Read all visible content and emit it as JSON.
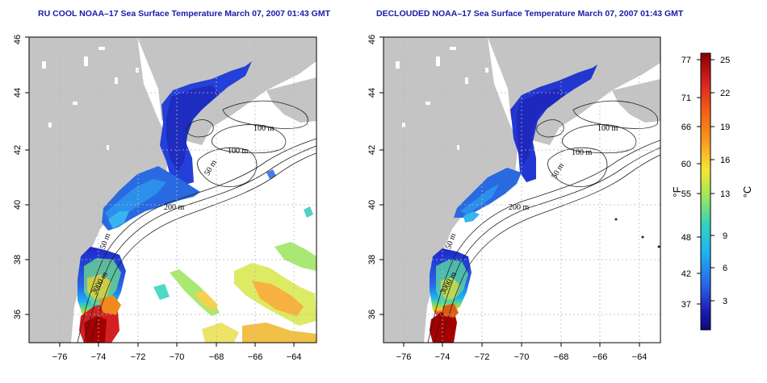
{
  "panels": [
    {
      "title": "RU COOL NOAA–17 Sea Surface Temperature March 07, 2007 01:43 GMT",
      "contour_labels": [
        "100 m",
        "100 m",
        "50 m",
        "200 m",
        "50 m",
        "3000 m"
      ]
    },
    {
      "title": "DECLOUDED NOAA–17 Sea Surface Temperature March 07, 2007 01:43 GMT",
      "contour_labels": [
        "100 m",
        "100 m",
        "50 m",
        "200 m",
        "50 m",
        "3000 m"
      ]
    }
  ],
  "axes": {
    "x_ticks": [
      "−76",
      "−74",
      "−72",
      "−70",
      "−68",
      "−66",
      "−64"
    ],
    "y_ticks": [
      "36",
      "38",
      "40",
      "42",
      "44",
      "46"
    ]
  },
  "colorbar": {
    "fahrenheit_ticks": [
      "77",
      "71",
      "66",
      "60",
      "55",
      "48",
      "42",
      "37"
    ],
    "celsius_ticks": [
      "25",
      "22",
      "19",
      "16",
      "13",
      "9",
      "6",
      "3"
    ],
    "fahrenheit_label": "°F",
    "celsius_label": "°C",
    "colors": [
      "#8b0000",
      "#d42020",
      "#f05a14",
      "#fa9b1e",
      "#f5e632",
      "#9be65a",
      "#32d2be",
      "#1eb4f0",
      "#2864e6",
      "#1e1eb4",
      "#0a0a78"
    ]
  },
  "colors": {
    "land": "#c4c4c4",
    "ocean": "#ffffff",
    "title": "#1a1aa8",
    "grid": "#b0b0b0"
  }
}
